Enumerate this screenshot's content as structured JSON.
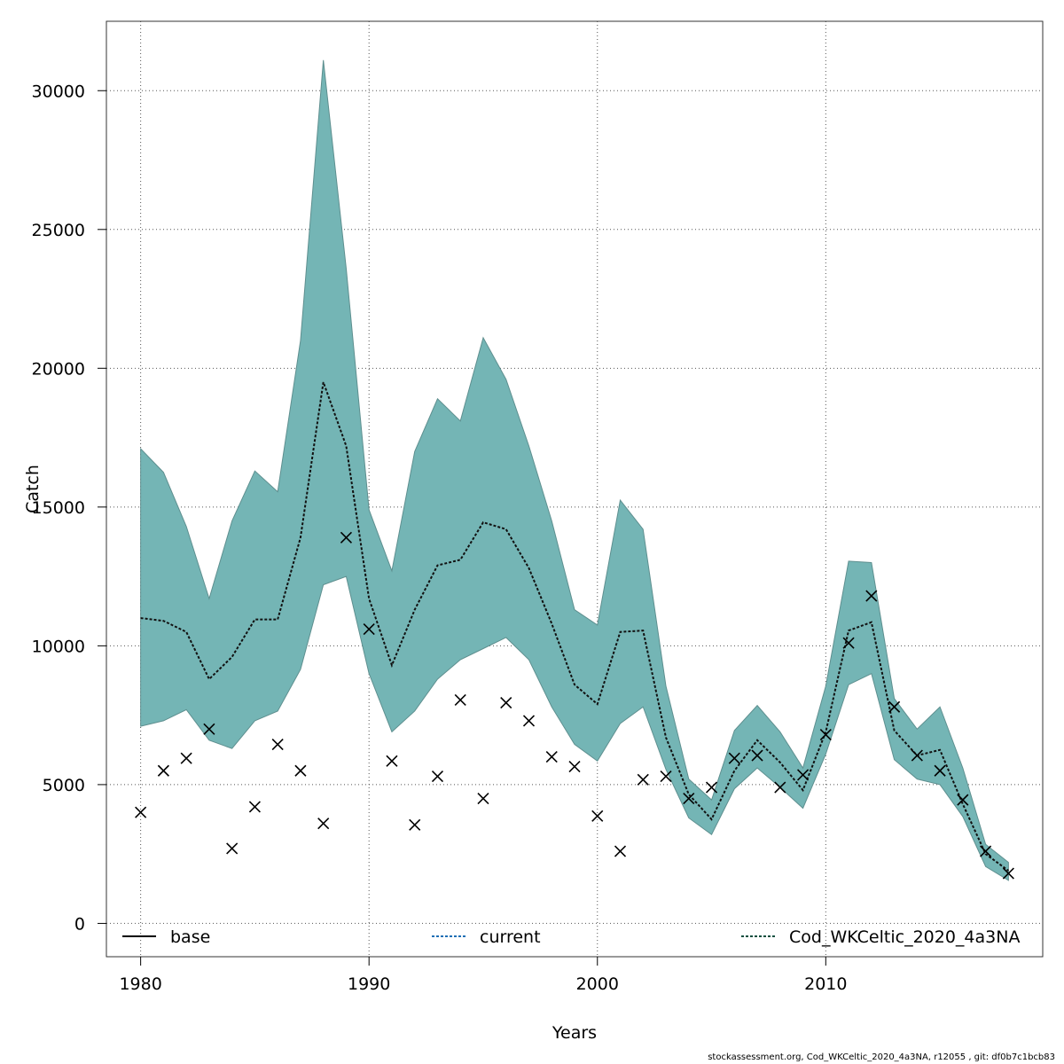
{
  "chart_data": {
    "type": "line",
    "xlabel": "Years",
    "ylabel": "Catch",
    "xlim": [
      1978.5,
      2019.5
    ],
    "ylim": [
      -1200,
      32500
    ],
    "xticks": [
      1980,
      1990,
      2000,
      2010
    ],
    "yticks": [
      0,
      5000,
      10000,
      15000,
      20000,
      25000,
      30000
    ],
    "grid": true,
    "colors": {
      "band_fill": "#74b5b5",
      "band_stroke": "#5e8f8f",
      "base_line": "#000000",
      "current_line": "#1f6fb5",
      "model_line": "#0b4f3f",
      "observed_marker": "#000000"
    },
    "x": [
      1980,
      1981,
      1982,
      1983,
      1984,
      1985,
      1986,
      1987,
      1988,
      1989,
      1990,
      1991,
      1992,
      1993,
      1994,
      1995,
      1996,
      1997,
      1998,
      1999,
      2000,
      2001,
      2002,
      2003,
      2004,
      2005,
      2006,
      2007,
      2008,
      2009,
      2010,
      2011,
      2012,
      2013,
      2014,
      2015,
      2016,
      2017,
      2018
    ],
    "series": [
      {
        "name": "Cod_WKCeltic_2020_4a3NA",
        "style": "dotted",
        "values": [
          11000,
          10900,
          10500,
          8800,
          9600,
          10950,
          10950,
          13900,
          19500,
          17200,
          11700,
          9300,
          11300,
          12900,
          13100,
          14450,
          14200,
          12800,
          10800,
          8600,
          7900,
          10500,
          10550,
          6700,
          4650,
          3750,
          5500,
          6600,
          5800,
          4800,
          6900,
          10550,
          10850,
          6950,
          6050,
          6250,
          4300,
          2500,
          1900
        ]
      }
    ],
    "band": {
      "upper": [
        17100,
        16250,
        14300,
        11700,
        14500,
        16300,
        15550,
        21000,
        31100,
        23600,
        14900,
        12700,
        17000,
        18900,
        18100,
        21100,
        19600,
        17200,
        14500,
        11300,
        10750,
        15250,
        14200,
        8550,
        5200,
        4450,
        6950,
        7850,
        6900,
        5600,
        8550,
        13050,
        13000,
        8100,
        7000,
        7800,
        5600,
        2850,
        2200
      ],
      "lower": [
        7100,
        7300,
        7700,
        6600,
        6300,
        7300,
        7650,
        9150,
        12200,
        12500,
        9000,
        6900,
        7650,
        8800,
        9500,
        9900,
        10300,
        9500,
        7800,
        6450,
        5850,
        7200,
        7800,
        5550,
        3800,
        3200,
        4850,
        5600,
        4900,
        4150,
        6100,
        8600,
        9000,
        5900,
        5200,
        5000,
        3850,
        2050,
        1550
      ]
    },
    "observed": [
      4000,
      5500,
      5950,
      7000,
      2700,
      4200,
      6450,
      5500,
      3600,
      13900,
      10600,
      5850,
      3550,
      5300,
      8050,
      4500,
      7950,
      7300,
      6000,
      5650,
      3870,
      2600,
      5180,
      5300,
      4500,
      4900,
      5950,
      6050,
      4900,
      5350,
      6800,
      10100,
      11800,
      7800,
      6050,
      5500,
      4450,
      2600,
      1800
    ],
    "legend": {
      "position": "bottom",
      "entries": [
        {
          "label": "base",
          "style": "solid"
        },
        {
          "label": "current",
          "style": "dotted"
        },
        {
          "label": "Cod_WKCeltic_2020_4a3NA",
          "style": "dotted"
        }
      ]
    }
  },
  "footer_text": "stockassessment.org, Cod_WKCeltic_2020_4a3NA, r12055 , git: df0b7c1bcb83"
}
